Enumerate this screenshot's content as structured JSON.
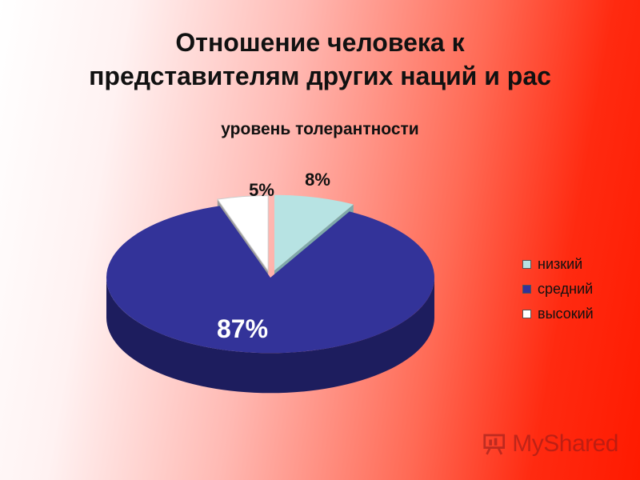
{
  "title_line1": "Отношение человека к",
  "title_line2": "представителям других наций и рас",
  "watermark": "MyShared",
  "colors": {
    "low": "#b7e3e3",
    "medium": "#333399",
    "high": "#ffffff"
  },
  "chart_data": {
    "type": "pie",
    "subtitle": "уровень толерантности",
    "categories": [
      "низкий",
      "средний",
      "высокий"
    ],
    "values": [
      8,
      87,
      5
    ],
    "value_labels": [
      "8%",
      "87%",
      "5%"
    ],
    "legend": "right",
    "exploded": true
  }
}
